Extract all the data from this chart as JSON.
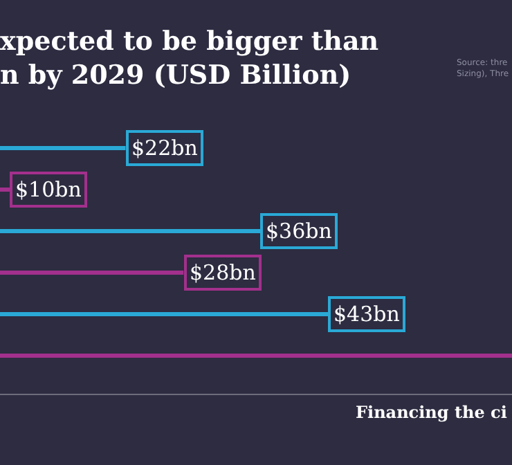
{
  "chart_data": {
    "type": "bar",
    "orientation": "horizontal",
    "title": "xpected to be bigger than\nn by 2029 (USD Billion)",
    "categories": [
      null,
      null,
      null,
      null,
      null,
      null
    ],
    "values": [
      22,
      10,
      36,
      28,
      43,
      62
    ],
    "colors": [
      "#2aa9d6",
      "#a3308c",
      "#2aa9d6",
      "#a3308c",
      "#2aa9d6",
      "#a3308c"
    ],
    "value_labels": [
      "$22bn",
      "$10bn",
      "$36bn",
      "$28bn",
      "$43bn",
      null
    ],
    "xlim": [
      9,
      62
    ],
    "tick_labels": false,
    "annotations": [
      "Source: thre\nSizing), Thre",
      "Financing the ci"
    ]
  }
}
